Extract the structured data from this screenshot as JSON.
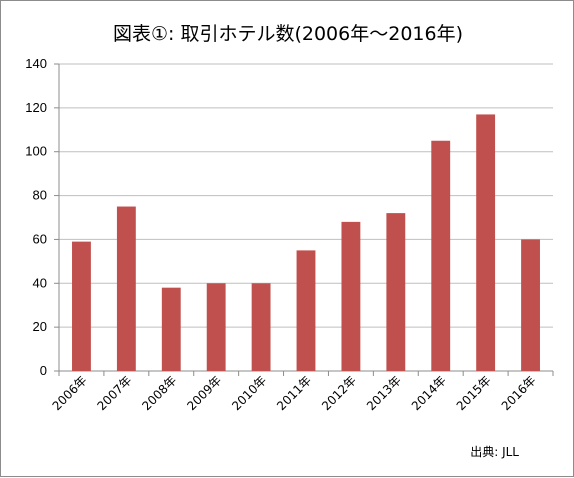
{
  "chart_data": {
    "type": "bar",
    "title": "図表①:  取引ホテル数(2006年～2016年)",
    "xlabel": "",
    "ylabel": "",
    "categories": [
      "2006年",
      "2007年",
      "2008年",
      "2009年",
      "2010年",
      "2011年",
      "2012年",
      "2013年",
      "2014年",
      "2015年",
      "2016年"
    ],
    "values": [
      59,
      75,
      38,
      40,
      40,
      55,
      68,
      72,
      105,
      117,
      60
    ],
    "ylim": [
      0,
      140
    ],
    "yticks": [
      0,
      20,
      40,
      60,
      80,
      100,
      120,
      140
    ],
    "grid": true,
    "legend": "none",
    "bar_color": "#c0504d",
    "source": "出典: JLL"
  }
}
